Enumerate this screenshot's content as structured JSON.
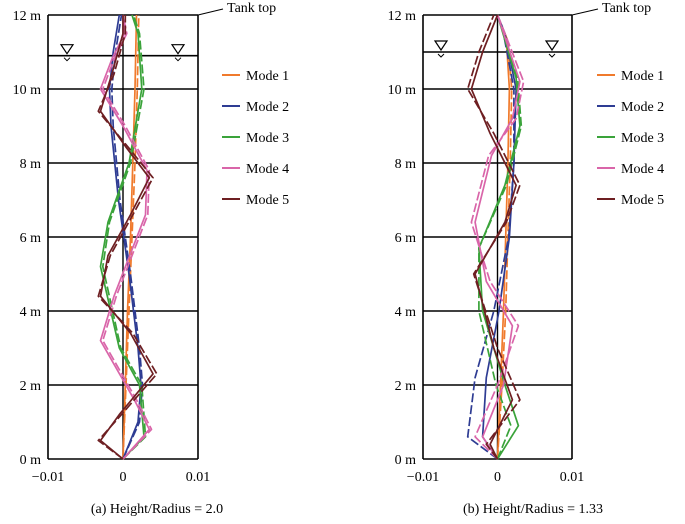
{
  "chart_data": [
    {
      "type": "line",
      "title": "(a) Height/Radius = 2.0",
      "xlabel": "",
      "ylabel": "",
      "xlim": [
        -0.01,
        0.01
      ],
      "ylim": [
        0,
        12
      ],
      "x_ticks": [
        "−0.01",
        "0",
        "0.01"
      ],
      "y_ticks": [
        "0 m",
        "2 m",
        "4 m",
        "6 m",
        "8 m",
        "10 m",
        "12 m"
      ],
      "grid": true,
      "legend_position": "right",
      "annotations": {
        "tank_top": "Tank top",
        "water_level": 10.9
      },
      "series": [
        {
          "name": "Mode 1",
          "color": "#f07a2c",
          "solid": [
            [
              0.0,
              0
            ],
            [
              0.0003,
              2
            ],
            [
              0.0006,
              4
            ],
            [
              0.001,
              6
            ],
            [
              0.0013,
              8
            ],
            [
              0.0016,
              10
            ],
            [
              0.0018,
              12
            ]
          ],
          "dashed": [
            [
              0.0,
              0
            ],
            [
              0.0004,
              2
            ],
            [
              0.0008,
              4
            ],
            [
              0.0012,
              6
            ],
            [
              0.0016,
              8
            ],
            [
              0.0019,
              10
            ],
            [
              0.0021,
              12
            ]
          ]
        },
        {
          "name": "Mode 2",
          "color": "#2e3c93",
          "solid": [
            [
              0.0,
              0
            ],
            [
              0.002,
              1
            ],
            [
              0.0024,
              2
            ],
            [
              0.002,
              3
            ],
            [
              0.0008,
              5
            ],
            [
              -0.0006,
              7
            ],
            [
              -0.0016,
              9
            ],
            [
              -0.0018,
              10
            ],
            [
              -0.0013,
              11
            ],
            [
              -0.0005,
              12
            ]
          ],
          "dashed": [
            [
              0.0,
              0
            ],
            [
              0.0022,
              1
            ],
            [
              0.0026,
              2
            ],
            [
              0.0022,
              3
            ],
            [
              0.001,
              5
            ],
            [
              -0.0004,
              7
            ],
            [
              -0.0013,
              9
            ],
            [
              -0.0015,
              10
            ],
            [
              -0.001,
              11
            ],
            [
              -0.0002,
              12
            ]
          ]
        },
        {
          "name": "Mode 3",
          "color": "#3aa33a",
          "solid": [
            [
              0.0,
              0
            ],
            [
              0.0028,
              0.6
            ],
            [
              0.0022,
              2
            ],
            [
              -0.0005,
              3
            ],
            [
              -0.003,
              5.2
            ],
            [
              -0.002,
              6.4
            ],
            [
              0.0008,
              8
            ],
            [
              0.0025,
              10
            ],
            [
              0.002,
              11.5
            ],
            [
              0.0012,
              12
            ]
          ],
          "dashed": [
            [
              0.0,
              0
            ],
            [
              0.003,
              0.6
            ],
            [
              0.0025,
              2
            ],
            [
              -0.0003,
              3
            ],
            [
              -0.0027,
              5.2
            ],
            [
              -0.0018,
              6.4
            ],
            [
              0.001,
              8
            ],
            [
              0.0028,
              10
            ],
            [
              0.0022,
              11.5
            ],
            [
              0.0014,
              12
            ]
          ]
        },
        {
          "name": "Mode 4",
          "color": "#d965a9",
          "solid": [
            [
              0.0,
              0
            ],
            [
              0.0035,
              0.8
            ],
            [
              0.0015,
              1.6
            ],
            [
              -0.003,
              3.2
            ],
            [
              -0.0012,
              4.4
            ],
            [
              0.003,
              6.6
            ],
            [
              0.0032,
              7.8
            ],
            [
              0.0,
              9
            ],
            [
              -0.003,
              10
            ],
            [
              -0.0015,
              10.8
            ],
            [
              0.0002,
              11.5
            ],
            [
              0.0,
              12
            ]
          ],
          "dashed": [
            [
              0.0,
              0
            ],
            [
              0.0038,
              0.8
            ],
            [
              0.0018,
              1.6
            ],
            [
              -0.0027,
              3.2
            ],
            [
              -0.0009,
              4.4
            ],
            [
              0.0033,
              6.6
            ],
            [
              0.0035,
              7.8
            ],
            [
              0.0003,
              9
            ],
            [
              -0.0027,
              10
            ],
            [
              -0.0012,
              10.8
            ],
            [
              0.0005,
              11.5
            ],
            [
              0.0,
              12
            ]
          ]
        },
        {
          "name": "Mode 5",
          "color": "#6e1f22",
          "solid": [
            [
              0.0,
              0
            ],
            [
              -0.003,
              0.5
            ],
            [
              -0.0005,
              1.2
            ],
            [
              0.004,
              2.3
            ],
            [
              0.001,
              3.4
            ],
            [
              -0.003,
              4.4
            ],
            [
              -0.002,
              5.5
            ],
            [
              0.001,
              6.6
            ],
            [
              0.0035,
              7.6
            ],
            [
              0.0005,
              8.4
            ],
            [
              -0.003,
              9.4
            ],
            [
              -0.0015,
              10.4
            ],
            [
              0.0,
              11.5
            ],
            [
              0.0,
              12
            ]
          ],
          "dashed": [
            [
              0.0,
              0
            ],
            [
              -0.0033,
              0.5
            ],
            [
              -0.0002,
              1.2
            ],
            [
              0.0045,
              2.3
            ],
            [
              0.0013,
              3.4
            ],
            [
              -0.0033,
              4.4
            ],
            [
              -0.0017,
              5.5
            ],
            [
              0.0013,
              6.6
            ],
            [
              0.004,
              7.6
            ],
            [
              0.0008,
              8.4
            ],
            [
              -0.0033,
              9.4
            ],
            [
              -0.0012,
              10.4
            ],
            [
              0.0003,
              11.5
            ],
            [
              0.0003,
              12
            ]
          ]
        }
      ]
    },
    {
      "type": "line",
      "title": "(b) Height/Radius = 1.33",
      "xlabel": "",
      "ylabel": "",
      "xlim": [
        -0.01,
        0.01
      ],
      "ylim": [
        0,
        12
      ],
      "x_ticks": [
        "−0.01",
        "0",
        "0.01"
      ],
      "y_ticks": [
        "0 m",
        "2 m",
        "4 m",
        "6 m",
        "8 m",
        "10 m",
        "12 m"
      ],
      "grid": true,
      "legend_position": "right",
      "annotations": {
        "tank_top": "Tank top",
        "water_level": 11.0
      },
      "series": [
        {
          "name": "Mode 1",
          "color": "#f07a2c",
          "solid": [
            [
              0.0,
              0
            ],
            [
              0.0004,
              2
            ],
            [
              0.0008,
              4
            ],
            [
              0.0011,
              6
            ],
            [
              0.0014,
              8
            ],
            [
              0.0016,
              10
            ],
            [
              0.0012,
              11.3
            ],
            [
              0.0,
              12
            ]
          ],
          "dashed": [
            [
              0.0,
              0
            ],
            [
              0.0006,
              2
            ],
            [
              0.0011,
              4
            ],
            [
              0.0014,
              6
            ],
            [
              0.0017,
              8
            ],
            [
              0.0019,
              10
            ],
            [
              0.0014,
              11.3
            ],
            [
              0.0,
              12
            ]
          ]
        },
        {
          "name": "Mode 2",
          "color": "#2e3c93",
          "solid": [
            [
              0.0,
              0
            ],
            [
              -0.002,
              0.6
            ],
            [
              -0.0015,
              2.2
            ],
            [
              0.0002,
              4
            ],
            [
              0.0016,
              6
            ],
            [
              0.0022,
              8
            ],
            [
              0.0025,
              10
            ],
            [
              0.001,
              11.5
            ],
            [
              0.0,
              12
            ]
          ],
          "dashed": [
            [
              0.0,
              0
            ],
            [
              -0.004,
              0.6
            ],
            [
              -0.003,
              2.2
            ],
            [
              -0.0005,
              4
            ],
            [
              0.0015,
              6
            ],
            [
              0.0022,
              8
            ],
            [
              0.0022,
              10
            ],
            [
              0.0008,
              11.5
            ],
            [
              0.0,
              12
            ]
          ]
        },
        {
          "name": "Mode 3",
          "color": "#3aa33a",
          "solid": [
            [
              0.0,
              0
            ],
            [
              0.0028,
              0.9
            ],
            [
              0.001,
              2
            ],
            [
              -0.002,
              4
            ],
            [
              -0.0025,
              5.7
            ],
            [
              0.001,
              7.4
            ],
            [
              0.003,
              9
            ],
            [
              0.0025,
              10.3
            ],
            [
              0.0,
              12
            ]
          ],
          "dashed": [
            [
              0.0,
              0
            ],
            [
              0.0018,
              0.9
            ],
            [
              -0.0002,
              2
            ],
            [
              -0.0025,
              4
            ],
            [
              -0.0025,
              5.7
            ],
            [
              0.0012,
              7.4
            ],
            [
              0.0032,
              9
            ],
            [
              0.0027,
              10.3
            ],
            [
              0.0,
              12
            ]
          ]
        },
        {
          "name": "Mode 4",
          "color": "#d965a9",
          "solid": [
            [
              0.0,
              0
            ],
            [
              -0.002,
              0.6
            ],
            [
              0.0008,
              2
            ],
            [
              0.002,
              3.6
            ],
            [
              -0.0015,
              4.8
            ],
            [
              -0.003,
              6.4
            ],
            [
              -0.0008,
              8.2
            ],
            [
              0.002,
              9.2
            ],
            [
              0.003,
              10.2
            ],
            [
              0.001,
              11.4
            ],
            [
              0.0,
              12
            ]
          ],
          "dashed": [
            [
              0.0,
              0
            ],
            [
              -0.003,
              0.6
            ],
            [
              0.0,
              2
            ],
            [
              0.0028,
              3.6
            ],
            [
              -0.001,
              4.8
            ],
            [
              -0.0035,
              6.4
            ],
            [
              -0.0012,
              8.2
            ],
            [
              0.0025,
              9.2
            ],
            [
              0.0035,
              10.2
            ],
            [
              0.0012,
              11.4
            ],
            [
              0.0,
              12
            ]
          ]
        },
        {
          "name": "Mode 5",
          "color": "#6e1f22",
          "solid": [
            [
              0.0,
              0
            ],
            [
              -0.001,
              0.4
            ],
            [
              0.002,
              1.6
            ],
            [
              -0.0005,
              3
            ],
            [
              -0.003,
              5
            ],
            [
              0.001,
              6.4
            ],
            [
              0.0025,
              7.4
            ],
            [
              -0.001,
              8.8
            ],
            [
              -0.0035,
              10
            ],
            [
              -0.002,
              11
            ],
            [
              0.0,
              12
            ]
          ],
          "dashed": [
            [
              0.0,
              0
            ],
            [
              -0.0015,
              0.4
            ],
            [
              0.003,
              1.6
            ],
            [
              0.0,
              3
            ],
            [
              -0.0032,
              5
            ],
            [
              0.0012,
              6.4
            ],
            [
              0.003,
              7.4
            ],
            [
              -0.0005,
              8.8
            ],
            [
              -0.004,
              10
            ],
            [
              -0.0025,
              11
            ],
            [
              -0.0005,
              12
            ]
          ]
        }
      ]
    }
  ]
}
